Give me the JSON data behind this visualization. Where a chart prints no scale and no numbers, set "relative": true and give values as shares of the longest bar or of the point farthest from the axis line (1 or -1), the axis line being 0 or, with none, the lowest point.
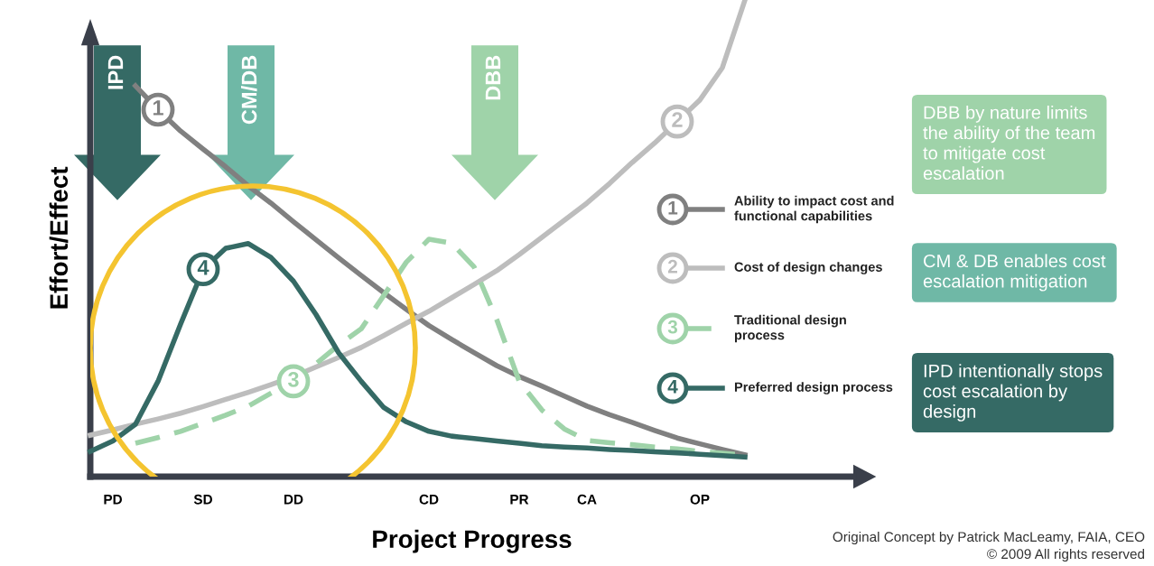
{
  "chart_data": {
    "type": "line",
    "relative": true,
    "xlabel": "Project Progress",
    "ylabel": "Effort/Effect",
    "categories": [
      null,
      "PD",
      null,
      null,
      null,
      "SD",
      null,
      null,
      null,
      "DD",
      null,
      null,
      null,
      null,
      null,
      "CD",
      null,
      null,
      null,
      "PR",
      null,
      null,
      "CA",
      null,
      null,
      null,
      null,
      "OP",
      null,
      null
    ],
    "legend": "right",
    "series": [
      {
        "name": "Ability to impact cost and\nfunctional capabilities",
        "color": "#808080",
        "line_style": "solid",
        "values": [
          null,
          null,
          0.82,
          0.77,
          0.725,
          0.687,
          0.65,
          0.61,
          0.574,
          0.535,
          0.497,
          0.459,
          0.422,
          0.386,
          0.351,
          0.317,
          0.288,
          0.26,
          0.233,
          0.21,
          0.19,
          0.169,
          0.148,
          0.13,
          0.114,
          0.097,
          0.081,
          0.069,
          0.057,
          0.046
        ]
      },
      {
        "name": "Cost of design changes",
        "color": "#bdbdbd",
        "line_style": "solid",
        "values": [
          0.087,
          0.098,
          0.11,
          0.121,
          0.133,
          0.147,
          0.162,
          0.177,
          0.193,
          0.21,
          0.23,
          0.25,
          0.271,
          0.296,
          0.322,
          0.347,
          0.375,
          0.403,
          0.432,
          0.466,
          0.502,
          0.538,
          0.574,
          0.615,
          0.659,
          0.7,
          0.745,
          0.79,
          0.858,
          1.0
        ]
      },
      {
        "name": "Traditional design\nprocess",
        "color": "#9fd3a9",
        "line_style": "dashed",
        "values": [
          null,
          null,
          0.07,
          0.082,
          0.095,
          0.112,
          0.129,
          0.148,
          0.175,
          0.2,
          0.237,
          0.276,
          0.31,
          0.38,
          0.45,
          0.498,
          0.49,
          0.44,
          0.33,
          0.2,
          0.14,
          0.1,
          0.076,
          0.071,
          0.067,
          0.062,
          0.058,
          0.053,
          0.049,
          0.045
        ]
      },
      {
        "name": "Preferred design process",
        "color": "#356a65",
        "line_style": "solid",
        "values": [
          0.053,
          0.075,
          0.11,
          0.2,
          0.32,
          0.435,
          0.479,
          0.489,
          0.46,
          0.41,
          0.34,
          0.26,
          0.2,
          0.145,
          0.115,
          0.095,
          0.085,
          0.08,
          0.075,
          0.07,
          0.065,
          0.062,
          0.06,
          0.057,
          0.055,
          0.052,
          0.05,
          0.047,
          0.044,
          0.041
        ]
      }
    ],
    "annotations": [
      "1",
      "2",
      "3",
      "4",
      "IPD",
      "CM/DB",
      "DBB",
      "DBB by nature limits\nthe ability of the team\nto mitigate cost\nescalation",
      "CM & DB enables cost\nescalation mitigation",
      "IPD intentionally stops\ncost escalation by\ndesign",
      "Original Concept by Patrick MacLeamy, FAIA, CEO",
      "© 2009 All rights reserved"
    ]
  }
}
